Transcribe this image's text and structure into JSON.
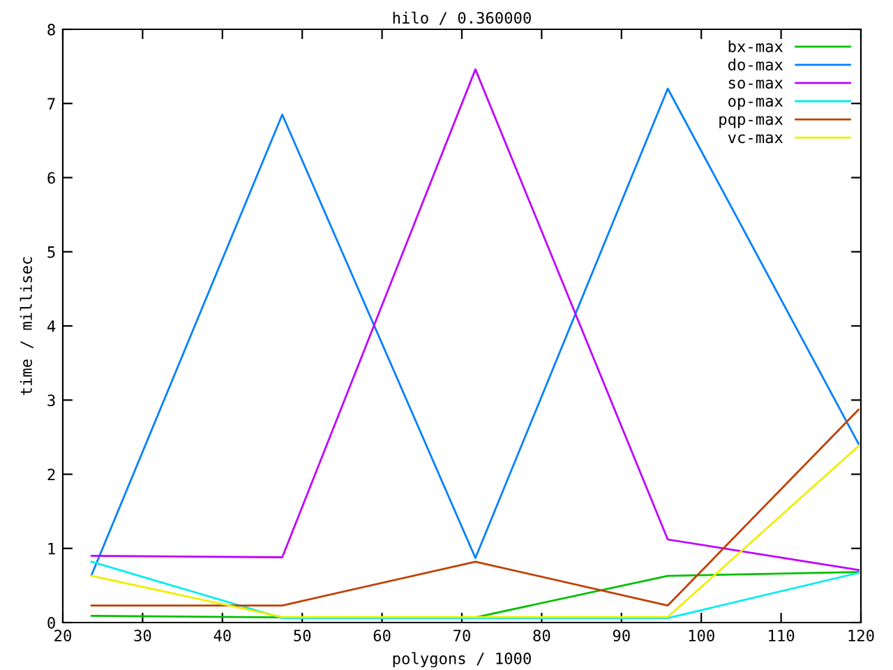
{
  "chart_data": {
    "type": "line",
    "title": "hilo / 0.360000",
    "xlabel": "polygons / 1000",
    "ylabel": "time / millisec",
    "x": [
      23.6,
      47.5,
      71.7,
      95.8,
      119.7
    ],
    "series": [
      {
        "name": "bx-max",
        "color": "#00c000",
        "values": [
          0.09,
          0.07,
          0.07,
          0.63,
          0.68
        ]
      },
      {
        "name": "do-max",
        "color": "#0080ff",
        "values": [
          0.64,
          6.85,
          0.87,
          7.2,
          2.41
        ]
      },
      {
        "name": "so-max",
        "color": "#c000ff",
        "values": [
          0.9,
          0.88,
          7.46,
          1.12,
          0.71
        ]
      },
      {
        "name": "op-max",
        "color": "#00eeee",
        "values": [
          0.82,
          0.06,
          0.06,
          0.06,
          0.67
        ]
      },
      {
        "name": "pqp-max",
        "color": "#c04000",
        "values": [
          0.23,
          0.23,
          0.82,
          0.23,
          2.87
        ]
      },
      {
        "name": "vc-max",
        "color": "#eeee00",
        "values": [
          0.63,
          0.075,
          0.075,
          0.075,
          2.38
        ]
      }
    ],
    "xlim": [
      20,
      120
    ],
    "ylim": [
      0,
      8
    ],
    "xticks": [
      20,
      30,
      40,
      50,
      60,
      70,
      80,
      90,
      100,
      110,
      120
    ],
    "yticks": [
      0,
      1,
      2,
      3,
      4,
      5,
      6,
      7,
      8
    ],
    "grid": false,
    "legend": "top right",
    "marker": "none",
    "line_style": "solid"
  }
}
